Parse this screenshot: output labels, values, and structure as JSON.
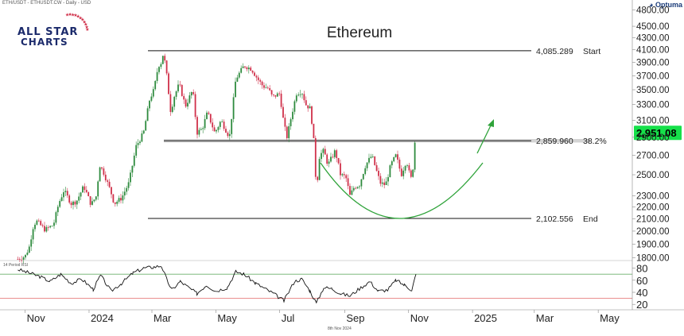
{
  "header": {
    "symbol_line": "ETH/USDT - ETHUSDT.CW - Daily - USD",
    "brand": "Optuma",
    "logo_line1": "ALL STAR",
    "logo_line2": "CHARTS",
    "footer_date": "8th Nov 2024"
  },
  "chart_data": {
    "type": "line",
    "title": "Ethereum",
    "xlabel": "",
    "ylabel": "",
    "x_ticks": [
      "Nov",
      "2024",
      "Mar",
      "May",
      "Jul",
      "Sep",
      "Nov",
      "2025",
      "Mar",
      "May"
    ],
    "y_ticks": [
      1800,
      1900,
      2000,
      2100,
      2200,
      2300,
      2500,
      2700,
      2900,
      3100,
      3300,
      3500,
      3700,
      3900,
      4100,
      4300,
      4500,
      4800
    ],
    "y_tick_labels": [
      "1800.00",
      "1900.00",
      "2000.00",
      "2100.00",
      "2200.00",
      "2300.00",
      "2500.00",
      "2700.00",
      "2900.00",
      "3100.00",
      "3300.00",
      "3500.00",
      "3700.00",
      "3900.00",
      "4100.00",
      "4300.00",
      "4500.00",
      "4800.00"
    ],
    "y_scale": "log",
    "ylim": [
      1780,
      4900
    ],
    "last_price": "2,951.08",
    "series": [
      {
        "values": [
          [
            "2023-10-25",
            1790
          ],
          [
            "2023-11-01",
            1810
          ],
          [
            "2023-11-05",
            1880
          ],
          [
            "2023-11-09",
            2050
          ],
          [
            "2023-11-12",
            2080
          ],
          [
            "2023-11-20",
            2010
          ],
          [
            "2023-11-28",
            2050
          ],
          [
            "2023-12-03",
            2230
          ],
          [
            "2023-12-08",
            2350
          ],
          [
            "2023-12-15",
            2230
          ],
          [
            "2023-12-20",
            2250
          ],
          [
            "2023-12-27",
            2390
          ],
          [
            "2024-01-03",
            2220
          ],
          [
            "2024-01-08",
            2300
          ],
          [
            "2024-01-11",
            2600
          ],
          [
            "2024-01-15",
            2520
          ],
          [
            "2024-01-22",
            2330
          ],
          [
            "2024-01-25",
            2230
          ],
          [
            "2024-02-01",
            2280
          ],
          [
            "2024-02-08",
            2420
          ],
          [
            "2024-02-15",
            2800
          ],
          [
            "2024-02-22",
            2950
          ],
          [
            "2024-02-28",
            3380
          ],
          [
            "2024-03-03",
            3500
          ],
          [
            "2024-03-07",
            3850
          ],
          [
            "2024-03-10",
            3900
          ],
          [
            "2024-03-12",
            4060
          ],
          [
            "2024-03-15",
            3720
          ],
          [
            "2024-03-19",
            3200
          ],
          [
            "2024-03-22",
            3400
          ],
          [
            "2024-03-27",
            3580
          ],
          [
            "2024-04-02",
            3280
          ],
          [
            "2024-04-09",
            3500
          ],
          [
            "2024-04-13",
            2950
          ],
          [
            "2024-04-18",
            3000
          ],
          [
            "2024-04-23",
            3200
          ],
          [
            "2024-04-30",
            2950
          ],
          [
            "2024-05-06",
            3100
          ],
          [
            "2024-05-14",
            2900
          ],
          [
            "2024-05-20",
            3650
          ],
          [
            "2024-05-24",
            3750
          ],
          [
            "2024-05-28",
            3850
          ],
          [
            "2024-06-04",
            3800
          ],
          [
            "2024-06-10",
            3650
          ],
          [
            "2024-06-15",
            3550
          ],
          [
            "2024-06-20",
            3520
          ],
          [
            "2024-06-24",
            3400
          ],
          [
            "2024-07-01",
            3450
          ],
          [
            "2024-07-05",
            3050
          ],
          [
            "2024-07-08",
            2900
          ],
          [
            "2024-07-12",
            3150
          ],
          [
            "2024-07-17",
            3450
          ],
          [
            "2024-07-22",
            3480
          ],
          [
            "2024-07-26",
            3300
          ],
          [
            "2024-07-30",
            3250
          ],
          [
            "2024-08-02",
            2950
          ],
          [
            "2024-08-05",
            2350
          ],
          [
            "2024-08-08",
            2700
          ],
          [
            "2024-08-12",
            2750
          ],
          [
            "2024-08-16",
            2600
          ],
          [
            "2024-08-23",
            2750
          ],
          [
            "2024-08-28",
            2500
          ],
          [
            "2024-09-02",
            2480
          ],
          [
            "2024-09-06",
            2300
          ],
          [
            "2024-09-10",
            2380
          ],
          [
            "2024-09-15",
            2400
          ],
          [
            "2024-09-21",
            2600
          ],
          [
            "2024-09-27",
            2700
          ],
          [
            "2024-10-01",
            2550
          ],
          [
            "2024-10-05",
            2420
          ],
          [
            "2024-10-10",
            2400
          ],
          [
            "2024-10-15",
            2600
          ],
          [
            "2024-10-20",
            2700
          ],
          [
            "2024-10-25",
            2500
          ],
          [
            "2024-10-30",
            2650
          ],
          [
            "2024-11-03",
            2450
          ],
          [
            "2024-11-05",
            2550
          ],
          [
            "2024-11-07",
            2850
          ],
          [
            "2024-11-08",
            2951
          ]
        ]
      }
    ],
    "levels": [
      {
        "price": 4085.289,
        "value_label": "4,085.289",
        "tag": "Start"
      },
      {
        "price": 2859.96,
        "value_label": "2,859.960",
        "tag": "38.2%"
      },
      {
        "price": 2102.556,
        "value_label": "2,102.556",
        "tag": "End"
      }
    ],
    "rsi": {
      "label": "14 Period RSI",
      "y_ticks": [
        20,
        40,
        60,
        80
      ],
      "ylim": [
        15,
        90
      ],
      "overbought": 70,
      "oversold": 30,
      "values": [
        [
          "2023-10-25",
          78
        ],
        [
          "2023-11-05",
          72
        ],
        [
          "2023-11-15",
          66
        ],
        [
          "2023-11-25",
          58
        ],
        [
          "2023-12-05",
          70
        ],
        [
          "2023-12-15",
          55
        ],
        [
          "2023-12-25",
          62
        ],
        [
          "2024-01-05",
          45
        ],
        [
          "2024-01-12",
          68
        ],
        [
          "2024-01-22",
          42
        ],
        [
          "2024-02-01",
          55
        ],
        [
          "2024-02-12",
          72
        ],
        [
          "2024-02-22",
          80
        ],
        [
          "2024-03-03",
          82
        ],
        [
          "2024-03-10",
          84
        ],
        [
          "2024-03-15",
          62
        ],
        [
          "2024-03-20",
          44
        ],
        [
          "2024-03-28",
          58
        ],
        [
          "2024-04-05",
          48
        ],
        [
          "2024-04-13",
          38
        ],
        [
          "2024-04-22",
          52
        ],
        [
          "2024-05-01",
          42
        ],
        [
          "2024-05-12",
          48
        ],
        [
          "2024-05-20",
          74
        ],
        [
          "2024-05-28",
          70
        ],
        [
          "2024-06-08",
          55
        ],
        [
          "2024-06-18",
          45
        ],
        [
          "2024-06-25",
          38
        ],
        [
          "2024-07-05",
          26
        ],
        [
          "2024-07-15",
          58
        ],
        [
          "2024-07-22",
          62
        ],
        [
          "2024-07-30",
          42
        ],
        [
          "2024-08-05",
          22
        ],
        [
          "2024-08-12",
          48
        ],
        [
          "2024-08-20",
          46
        ],
        [
          "2024-08-28",
          38
        ],
        [
          "2024-09-06",
          34
        ],
        [
          "2024-09-15",
          46
        ],
        [
          "2024-09-25",
          58
        ],
        [
          "2024-10-03",
          42
        ],
        [
          "2024-10-12",
          44
        ],
        [
          "2024-10-20",
          60
        ],
        [
          "2024-10-28",
          52
        ],
        [
          "2024-11-04",
          44
        ],
        [
          "2024-11-08",
          70
        ]
      ]
    },
    "colors": {
      "up": "#2e8b3e",
      "down": "#d0304a",
      "level": "#111111",
      "band": "#c9c9c9",
      "arc": "#2fa33a",
      "price_badge": "#16e04a",
      "rsi_line": "#111111",
      "rsi_upper": "#6ab06a",
      "rsi_lower": "#e46a6a"
    }
  }
}
